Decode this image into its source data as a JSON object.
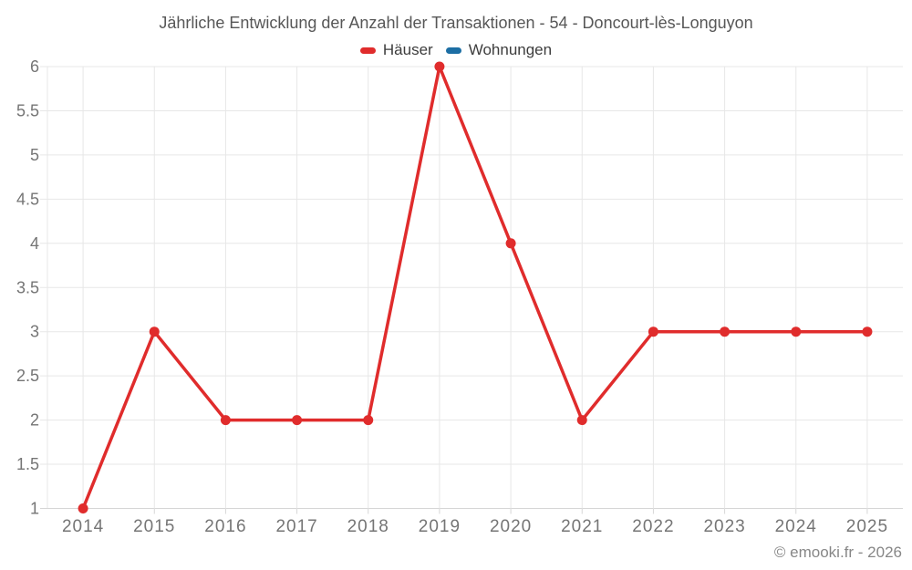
{
  "chart_data": {
    "type": "line",
    "title": "Jährliche Entwicklung der Anzahl der Transaktionen - 54 - Doncourt-lès-Longuyon",
    "categories": [
      "2014",
      "2015",
      "2016",
      "2017",
      "2018",
      "2019",
      "2020",
      "2021",
      "2022",
      "2023",
      "2024",
      "2025"
    ],
    "series": [
      {
        "name": "Häuser",
        "color": "#e02c2c",
        "values": [
          1,
          3,
          2,
          2,
          2,
          6,
          4,
          2,
          3,
          3,
          3,
          3
        ]
      },
      {
        "name": "Wohnungen",
        "color": "#1c6ea4",
        "values": []
      }
    ],
    "xlabel": "",
    "ylabel": "",
    "ylim": [
      1,
      6
    ],
    "ytick_step": 0.5,
    "yticks": [
      1,
      1.5,
      2,
      2.5,
      3,
      3.5,
      4,
      4.5,
      5,
      5.5,
      6
    ],
    "grid": true,
    "legend_position": "top",
    "marker": "circle"
  },
  "footer": {
    "copyright": "© emooki.fr - 2026"
  },
  "colors": {
    "background": "#ffffff",
    "grid": "#e7e7e7",
    "axis": "#d6d6d6",
    "tick_label": "#757575"
  }
}
